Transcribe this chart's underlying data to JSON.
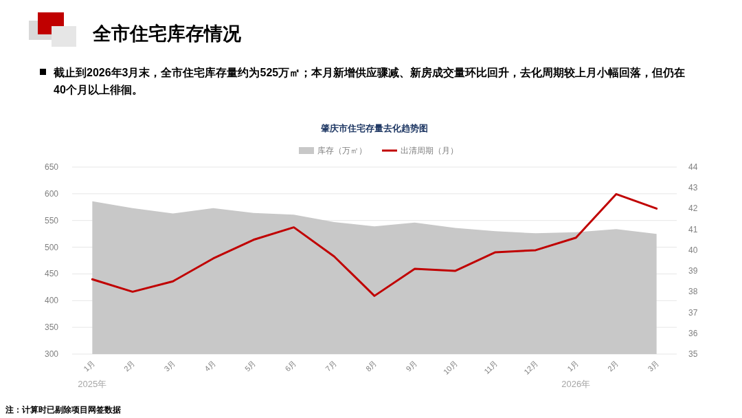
{
  "chart_data": {
    "type": "area",
    "title": "肇庆市住宅存量去化趋势图",
    "subtitle": "截止到2026年3月末，全市住宅库存量约为525万㎡；本月新增供应骤减、新房成交量环比回升，去化周期较上月小幅回落，但仍在40个月以上徘徊。",
    "categories": [
      "1月",
      "2月",
      "3月",
      "4月",
      "5月",
      "6月",
      "7月",
      "8月",
      "9月",
      "10月",
      "11月",
      "12月",
      "1月",
      "2月",
      "3月"
    ],
    "series": [
      {
        "name": "库存（万㎡）",
        "color": "#c8c8c8",
        "values": [
          586,
          573,
          563,
          573,
          564,
          561,
          547,
          539,
          546,
          536,
          530,
          526,
          528,
          534,
          525
        ]
      },
      {
        "name": "出清周期（月）",
        "type": "line",
        "axis": "y2",
        "color": "#c00000",
        "values": [
          38.6,
          38.0,
          38.5,
          39.6,
          40.5,
          41.1,
          39.7,
          37.8,
          39.1,
          39.0,
          39.9,
          40.0,
          40.6,
          42.7,
          42.0
        ]
      }
    ],
    "ylim": [
      300,
      650
    ],
    "yticks": [
      300,
      350,
      400,
      450,
      500,
      550,
      600,
      650
    ],
    "y2lim": [
      35,
      44
    ],
    "y2ticks": [
      35,
      36,
      37,
      38,
      39,
      40,
      41,
      42,
      43,
      44
    ],
    "grid": "y",
    "legend": "top",
    "marker": "none",
    "annotations": [
      "全市住宅库存情况",
      "2025年",
      "2026年",
      "注：计算时已剔除项目网签数据"
    ]
  }
}
